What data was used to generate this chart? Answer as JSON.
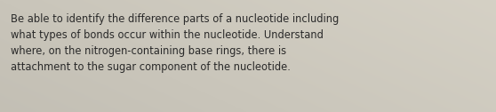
{
  "text": "Be able to identify the difference parts of a nucleotide including\nwhat types of bonds occur within the nucleotide. Understand\nwhere, on the nitrogen-containing base rings, there is\nattachment to the sugar component of the nucleotide.",
  "background_color": "#c9c5ba",
  "text_color": "#2a2a2a",
  "font_size": 8.3,
  "figsize": [
    5.58,
    1.26
  ],
  "dpi": 100
}
